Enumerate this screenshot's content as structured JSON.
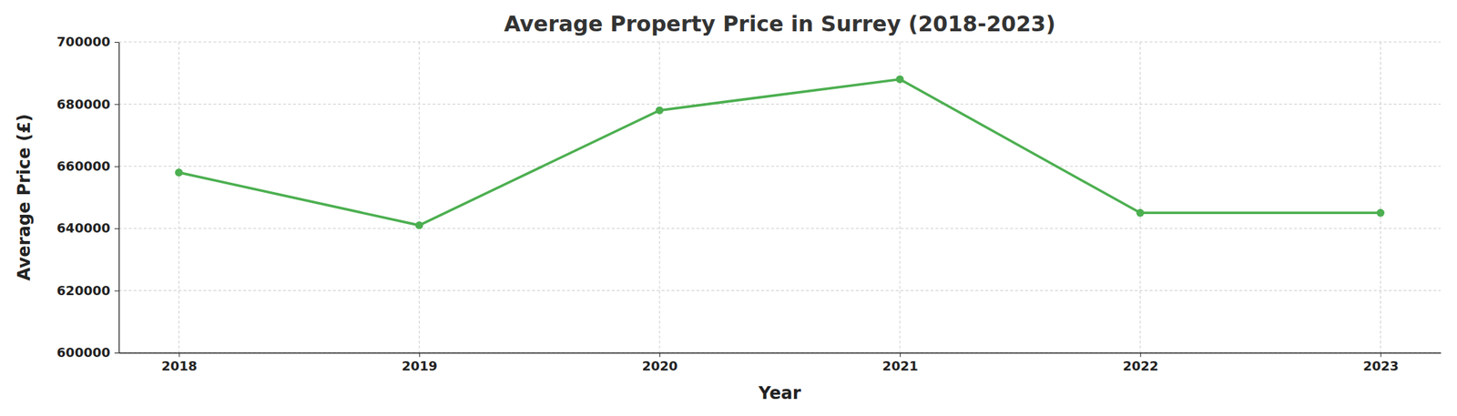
{
  "chart_data": {
    "type": "line",
    "title": "Average Property Price in Surrey (2018-2023)",
    "x_label": "Year",
    "y_label": "Average Price (£)",
    "x": [
      2018,
      2019,
      2020,
      2021,
      2022,
      2023
    ],
    "values": [
      658000,
      641000,
      678000,
      688000,
      645000,
      645000
    ],
    "color": "#4caf50",
    "marker": "circle",
    "line_style": "solid",
    "xlim": [
      2017.75,
      2023.25
    ],
    "xticks": [
      2018,
      2019,
      2020,
      2021,
      2022,
      2023
    ],
    "ylim": [
      600000,
      700000
    ],
    "yticks": [
      600000,
      620000,
      640000,
      660000,
      680000,
      700000
    ],
    "grid": true
  }
}
